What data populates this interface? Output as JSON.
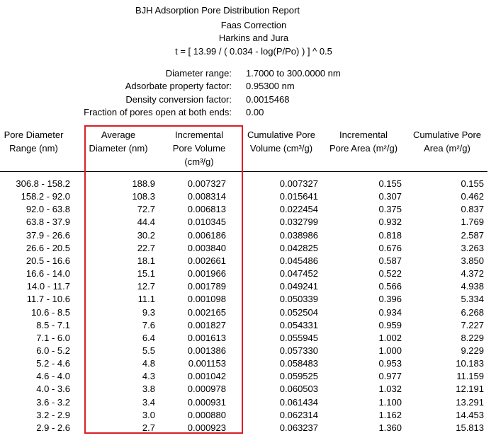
{
  "report": {
    "title": "BJH Adsorption Pore Distribution Report",
    "correction": "Faas Correction",
    "method": "Harkins and Jura",
    "equation": "t = [ 13.99 / ( 0.034 - log(P/Po) ) ] ^ 0.5"
  },
  "params": [
    {
      "label": "Diameter range:",
      "value": "1.7000 to 300.0000 nm"
    },
    {
      "label": "Adsorbate property factor:",
      "value": "0.95300 nm"
    },
    {
      "label": "Density conversion factor:",
      "value": "0.0015468"
    },
    {
      "label": "Fraction of pores open at both ends:",
      "value": "0.00"
    }
  ],
  "columns": {
    "c1_line1": "Pore Diameter",
    "c1_line2": "Range (nm)",
    "c2_line1": "Average",
    "c2_line2": "Diameter (nm)",
    "c3_line1": "Incremental",
    "c3_line2": "Pore Volume",
    "c3_line3": "(cm³/g)",
    "c4_line1": "Cumulative Pore",
    "c4_line2": "Volume (cm³/g)",
    "c5_line1": "Incremental",
    "c5_line2": "Pore Area (m²/g)",
    "c6_line1": "Cumulative Pore",
    "c6_line2": "Area (m²/g)"
  },
  "highlight_color": "#d91f26",
  "rows": [
    [
      "306.8 - 158.2",
      "188.9",
      "0.007327",
      "0.007327",
      "0.155",
      "0.155"
    ],
    [
      "158.2 - 92.0",
      "108.3",
      "0.008314",
      "0.015641",
      "0.307",
      "0.462"
    ],
    [
      "92.0 - 63.8",
      "72.7",
      "0.006813",
      "0.022454",
      "0.375",
      "0.837"
    ],
    [
      "63.8 - 37.9",
      "44.4",
      "0.010345",
      "0.032799",
      "0.932",
      "1.769"
    ],
    [
      "37.9 - 26.6",
      "30.2",
      "0.006186",
      "0.038986",
      "0.818",
      "2.587"
    ],
    [
      "26.6 - 20.5",
      "22.7",
      "0.003840",
      "0.042825",
      "0.676",
      "3.263"
    ],
    [
      "20.5 - 16.6",
      "18.1",
      "0.002661",
      "0.045486",
      "0.587",
      "3.850"
    ],
    [
      "16.6 - 14.0",
      "15.1",
      "0.001966",
      "0.047452",
      "0.522",
      "4.372"
    ],
    [
      "14.0 - 11.7",
      "12.7",
      "0.001789",
      "0.049241",
      "0.566",
      "4.938"
    ],
    [
      "11.7 - 10.6",
      "11.1",
      "0.001098",
      "0.050339",
      "0.396",
      "5.334"
    ],
    [
      "10.6 - 8.5",
      "9.3",
      "0.002165",
      "0.052504",
      "0.934",
      "6.268"
    ],
    [
      "8.5 - 7.1",
      "7.6",
      "0.001827",
      "0.054331",
      "0.959",
      "7.227"
    ],
    [
      "7.1 - 6.0",
      "6.4",
      "0.001613",
      "0.055945",
      "1.002",
      "8.229"
    ],
    [
      "6.0 - 5.2",
      "5.5",
      "0.001386",
      "0.057330",
      "1.000",
      "9.229"
    ],
    [
      "5.2 - 4.6",
      "4.8",
      "0.001153",
      "0.058483",
      "0.953",
      "10.183"
    ],
    [
      "4.6 - 4.0",
      "4.3",
      "0.001042",
      "0.059525",
      "0.977",
      "11.159"
    ],
    [
      "4.0 - 3.6",
      "3.8",
      "0.000978",
      "0.060503",
      "1.032",
      "12.191"
    ],
    [
      "3.6 - 3.2",
      "3.4",
      "0.000931",
      "0.061434",
      "1.100",
      "13.291"
    ],
    [
      "3.2 - 2.9",
      "3.0",
      "0.000880",
      "0.062314",
      "1.162",
      "14.453"
    ],
    [
      "2.9 - 2.6",
      "2.7",
      "0.000923",
      "0.063237",
      "1.360",
      "15.813"
    ]
  ]
}
